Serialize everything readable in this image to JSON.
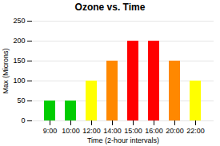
{
  "chart_data": {
    "type": "bar",
    "title": "Ozone vs. Time",
    "xlabel": "Time (2-hour intervals)",
    "ylabel": "Max (Microns)",
    "categories": [
      "9:00",
      "10:00",
      "12:00",
      "14:00",
      "15:00",
      "16:00",
      "20:00",
      "22:00"
    ],
    "values": [
      50,
      50,
      100,
      150,
      200,
      200,
      150,
      100
    ],
    "colors": [
      "#00cc00",
      "#00cc00",
      "#ffff00",
      "#ff8800",
      "#ff0000",
      "#ff0000",
      "#ff8800",
      "#ffff00"
    ],
    "ylim": [
      0,
      250
    ],
    "yticks": [
      0,
      50,
      100,
      150,
      200,
      250
    ],
    "grid": true
  }
}
